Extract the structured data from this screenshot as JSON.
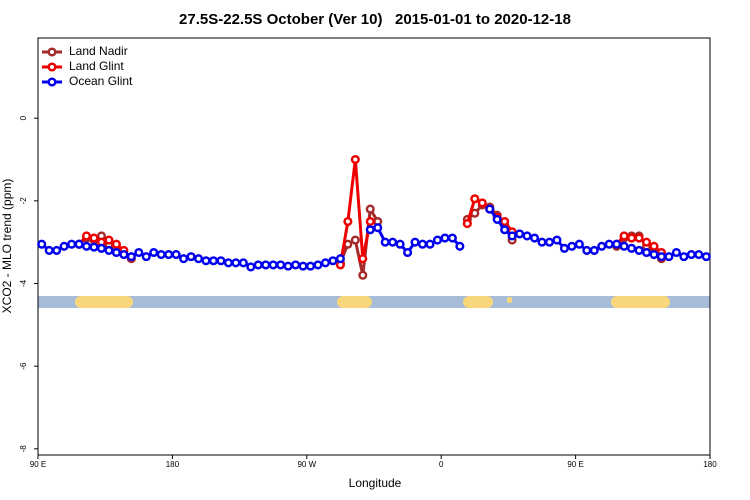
{
  "chart_data": {
    "type": "line",
    "title": "27.5S-22.5S October (Ver 10)   2015-01-01 to 2020-12-18",
    "x_label": "Longitude",
    "y_label": "XCO2 - MLO trend (ppm)",
    "xlim": [
      90,
      540
    ],
    "xticks": [
      {
        "value": 90,
        "label": "90 E"
      },
      180,
      {
        "value": 270,
        "label": "90 W"
      },
      {
        "value": 360,
        "label": "0"
      },
      {
        "value": 450,
        "label": "90 E"
      },
      {
        "value": 540,
        "label": "180"
      }
    ],
    "ylim": [
      -8.15,
      1.94
    ],
    "yticks": [
      0,
      -2,
      -4,
      -6,
      -8
    ],
    "legend": "top-left",
    "x": [
      92.5,
      97.5,
      102.5,
      107.5,
      112.5,
      117.5,
      122.5,
      127.5,
      132.5,
      137.5,
      142.5,
      147.5,
      152.5,
      157.5,
      162.5,
      167.5,
      172.5,
      177.5,
      182.5,
      187.5,
      192.5,
      197.5,
      202.5,
      207.5,
      212.5,
      217.5,
      222.5,
      227.5,
      232.5,
      237.5,
      242.5,
      247.5,
      252.5,
      257.5,
      262.5,
      267.5,
      272.5,
      277.5,
      282.5,
      287.5,
      292.5,
      297.5,
      302.5,
      307.5,
      312.5,
      317.5,
      322.5,
      327.5,
      332.5,
      337.5,
      342.5,
      347.5,
      352.5,
      357.5,
      362.5,
      367.5,
      372.5,
      377.5,
      382.5,
      387.5,
      392.5,
      397.5,
      402.5,
      407.5,
      412.5,
      417.5,
      422.5,
      427.5,
      432.5,
      437.5,
      442.5,
      447.5,
      452.5,
      457.5,
      462.5,
      467.5,
      472.5,
      477.5,
      482.5,
      487.5,
      492.5,
      497.5,
      502.5,
      507.5,
      512.5,
      517.5,
      522.5,
      527.5,
      532.5,
      537.5
    ],
    "series": [
      {
        "name": "Land Nadir",
        "color": "#a52a2a",
        "values": [
          null,
          null,
          null,
          null,
          null,
          -3.05,
          -2.9,
          -2.95,
          -2.85,
          -3.05,
          -3.15,
          -3.3,
          -3.4,
          null,
          null,
          null,
          null,
          null,
          null,
          null,
          null,
          null,
          null,
          null,
          null,
          null,
          null,
          null,
          null,
          null,
          null,
          null,
          null,
          null,
          null,
          null,
          null,
          null,
          null,
          null,
          -3.5,
          -3.05,
          -2.95,
          -3.8,
          -2.2,
          -2.5,
          null,
          null,
          null,
          null,
          null,
          null,
          null,
          null,
          null,
          null,
          null,
          -2.45,
          -2.3,
          -2.1,
          -2.15,
          -2.35,
          -2.6,
          -2.95,
          null,
          null,
          null,
          null,
          null,
          null,
          null,
          null,
          null,
          null,
          null,
          null,
          null,
          -3.1,
          -2.9,
          -2.85,
          -2.85,
          -3.1,
          -3.25,
          -3.4,
          null,
          null,
          null,
          null,
          null,
          null
        ]
      },
      {
        "name": "Land Glint",
        "color": "#ee0000",
        "values": [
          null,
          null,
          null,
          null,
          null,
          -3.05,
          -2.85,
          -2.9,
          -3.0,
          -2.95,
          -3.05,
          -3.2,
          null,
          null,
          null,
          null,
          null,
          null,
          null,
          null,
          null,
          null,
          null,
          null,
          null,
          null,
          null,
          null,
          null,
          null,
          null,
          null,
          null,
          null,
          null,
          null,
          null,
          null,
          null,
          null,
          -3.55,
          -2.5,
          -1.0,
          -3.4,
          -2.5,
          null,
          null,
          null,
          null,
          null,
          null,
          null,
          null,
          null,
          null,
          null,
          null,
          -2.55,
          -1.95,
          -2.05,
          -2.2,
          -2.4,
          -2.5,
          -2.75,
          null,
          null,
          null,
          null,
          null,
          null,
          null,
          null,
          null,
          null,
          null,
          null,
          null,
          -3.05,
          -2.85,
          -2.9,
          -2.9,
          -3.0,
          -3.1,
          -3.25,
          null,
          null,
          null,
          null,
          null,
          null
        ]
      },
      {
        "name": "Ocean Glint",
        "color": "#0000ee",
        "values": [
          -3.05,
          -3.2,
          -3.2,
          -3.1,
          -3.05,
          -3.05,
          -3.1,
          -3.12,
          -3.15,
          -3.2,
          -3.25,
          -3.3,
          -3.35,
          -3.25,
          -3.35,
          -3.25,
          -3.3,
          -3.3,
          -3.3,
          -3.4,
          -3.35,
          -3.4,
          -3.45,
          -3.45,
          -3.45,
          -3.5,
          -3.5,
          -3.5,
          -3.6,
          -3.55,
          -3.55,
          -3.55,
          -3.55,
          -3.58,
          -3.55,
          -3.58,
          -3.58,
          -3.55,
          -3.5,
          -3.45,
          -3.4,
          null,
          null,
          null,
          -2.7,
          -2.65,
          -3.0,
          -3.0,
          -3.05,
          -3.25,
          -3.0,
          -3.05,
          -3.05,
          -2.95,
          -2.9,
          -2.9,
          -3.1,
          null,
          null,
          null,
          -2.2,
          -2.45,
          -2.7,
          -2.85,
          -2.8,
          -2.85,
          -2.9,
          -3.0,
          -3.0,
          -2.95,
          -3.15,
          -3.1,
          -3.05,
          -3.2,
          -3.2,
          -3.1,
          -3.05,
          -3.05,
          -3.1,
          -3.15,
          -3.2,
          -3.25,
          -3.3,
          -3.35,
          -3.35,
          -3.25,
          -3.35,
          -3.3,
          -3.3,
          -3.35
        ]
      }
    ]
  }
}
